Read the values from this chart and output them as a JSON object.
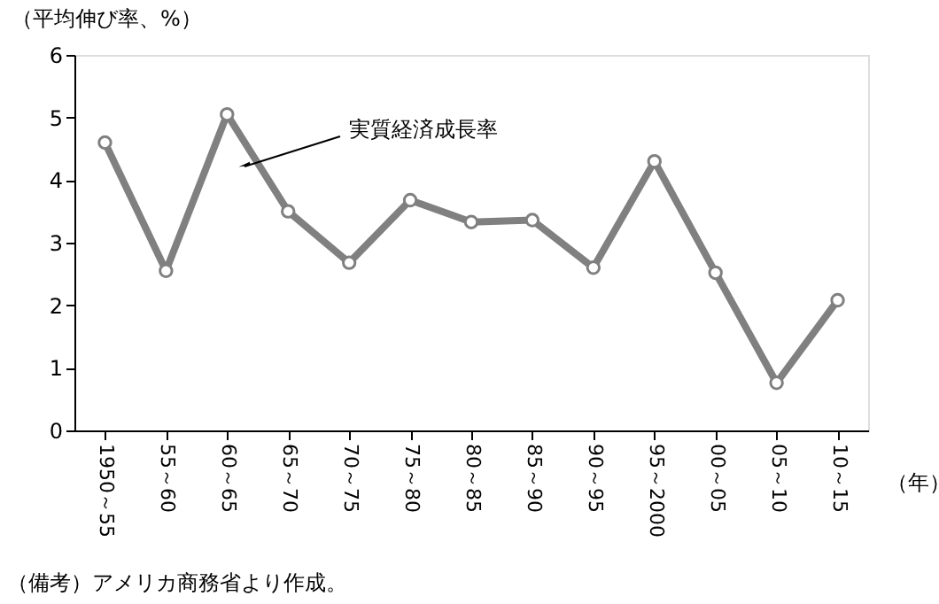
{
  "chart_data": {
    "type": "line",
    "categories": [
      "1950～55",
      "55～60",
      "60～65",
      "65～70",
      "70～75",
      "75～80",
      "80～85",
      "85～90",
      "90～95",
      "95～2000",
      "00～05",
      "05～10",
      "10～15"
    ],
    "series": [
      {
        "name": "実質経済成長率",
        "color": "#808080",
        "values": [
          4.6,
          2.55,
          5.05,
          3.5,
          2.68,
          3.68,
          3.33,
          3.36,
          2.6,
          4.3,
          2.52,
          0.76,
          2.08
        ]
      }
    ],
    "ylabel": "（平均伸び率、%）",
    "xlabel": "（年）",
    "ylim": [
      0,
      6
    ],
    "yticks": [
      0,
      1,
      2,
      3,
      4,
      5,
      6
    ],
    "marker": "circle",
    "line_style": "solid",
    "grid": false,
    "annotations": [
      "（備考）アメリカ商務省より作成。"
    ]
  }
}
